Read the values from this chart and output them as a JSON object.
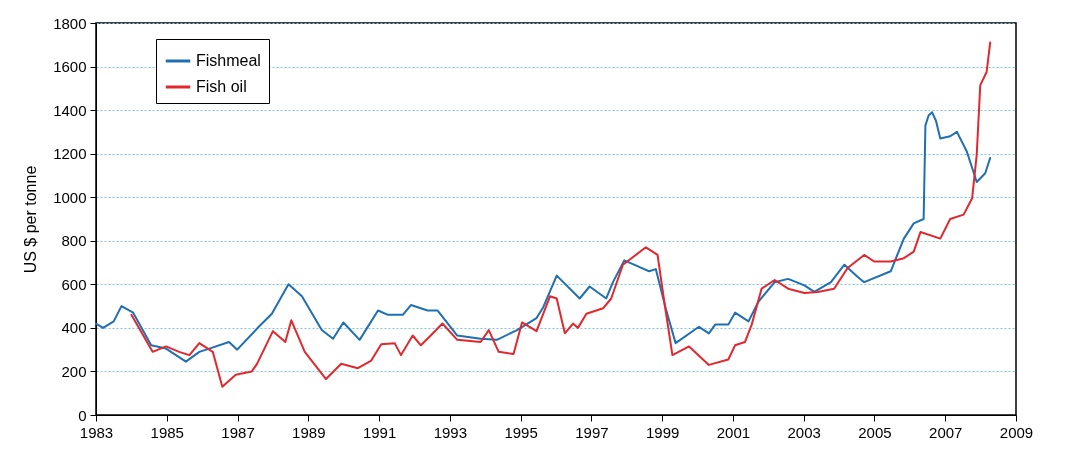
{
  "chart_data": {
    "type": "line",
    "ylabel": "US $ per tonne",
    "xlim": [
      1983,
      2009
    ],
    "xticks": [
      1983,
      1985,
      1987,
      1989,
      1991,
      1993,
      1995,
      1997,
      1999,
      2001,
      2003,
      2005,
      2007,
      2009
    ],
    "ylim": [
      0,
      1800
    ],
    "yticks": [
      0,
      200,
      400,
      600,
      800,
      1000,
      1200,
      1400,
      1600,
      1800
    ],
    "grid": "y",
    "legend": "top left",
    "marker": "none",
    "line_style": "solid",
    "series": [
      {
        "name": "Fishmeal",
        "color": "#1f6fb2",
        "x": [
          1983.0,
          1983.2,
          1983.5,
          1983.72,
          1984.05,
          1984.56,
          1984.98,
          1985.54,
          1985.92,
          1986.2,
          1986.76,
          1986.99,
          1987.6,
          1987.97,
          1988.44,
          1988.82,
          1989.38,
          1989.7,
          1989.99,
          1990.45,
          1990.97,
          1991.25,
          1991.67,
          1991.9,
          1992.37,
          1992.65,
          1993.21,
          1993.87,
          1994.33,
          1994.9,
          1995.45,
          1995.64,
          1996.02,
          1996.67,
          1996.95,
          1997.42,
          1997.61,
          1997.93,
          1998.35,
          1998.63,
          1998.82,
          1999.1,
          1999.38,
          2000.04,
          2000.32,
          2000.5,
          2000.87,
          2001.06,
          2001.44,
          2001.72,
          2002.18,
          2002.56,
          2003.02,
          2003.3,
          2003.77,
          2004.15,
          2004.52,
          2004.71,
          2005.46,
          2005.83,
          2006.11,
          2006.39,
          2006.44,
          2006.53,
          2006.63,
          2006.74,
          2006.86,
          2007.14,
          2007.33,
          2007.61,
          2007.89,
          2008.13,
          2008.27
        ],
        "values": [
          420,
          400,
          430,
          500,
          470,
          320,
          305,
          245,
          290,
          305,
          335,
          300,
          405,
          465,
          600,
          545,
          390,
          350,
          425,
          345,
          480,
          460,
          460,
          505,
          480,
          480,
          365,
          350,
          345,
          390,
          445,
          495,
          640,
          535,
          590,
          535,
          610,
          710,
          680,
          660,
          670,
          490,
          330,
          405,
          375,
          415,
          415,
          470,
          430,
          520,
          610,
          625,
          595,
          565,
          610,
          690,
          635,
          610,
          660,
          810,
          880,
          900,
          1330,
          1375,
          1390,
          1350,
          1270,
          1280,
          1300,
          1210,
          1070,
          1110,
          1180
        ]
      },
      {
        "name": "Fish oil",
        "color": "#e0282e",
        "x": [
          1984.0,
          1984.6,
          1984.98,
          1985.35,
          1985.64,
          1985.92,
          1986.3,
          1986.57,
          1986.95,
          1987.4,
          1987.55,
          1988.0,
          1988.35,
          1988.52,
          1988.9,
          1989.5,
          1989.93,
          1990.4,
          1990.78,
          1991.06,
          1991.44,
          1991.62,
          1991.95,
          1992.18,
          1992.46,
          1992.79,
          1993.21,
          1993.87,
          1994.1,
          1994.38,
          1994.8,
          1995.04,
          1995.45,
          1995.83,
          1996.02,
          1996.25,
          1996.48,
          1996.62,
          1996.86,
          1997.33,
          1997.56,
          1997.89,
          1998.54,
          1998.87,
          1999.06,
          1999.29,
          1999.76,
          2000.32,
          2000.87,
          2001.06,
          2001.34,
          2001.53,
          2001.81,
          2002.18,
          2002.56,
          2003.02,
          2003.4,
          2003.86,
          2004.24,
          2004.71,
          2004.99,
          2005.46,
          2005.83,
          2006.11,
          2006.3,
          2006.86,
          2007.14,
          2007.52,
          2007.76,
          2007.89,
          2007.99,
          2008.17,
          2008.27
        ],
        "values": [
          460,
          290,
          315,
          290,
          275,
          330,
          290,
          130,
          185,
          200,
          235,
          385,
          335,
          435,
          290,
          165,
          235,
          215,
          250,
          325,
          330,
          275,
          365,
          320,
          365,
          420,
          345,
          335,
          390,
          290,
          280,
          425,
          385,
          545,
          535,
          375,
          420,
          400,
          465,
          490,
          535,
          690,
          770,
          735,
          520,
          275,
          315,
          230,
          255,
          320,
          335,
          415,
          580,
          620,
          580,
          560,
          565,
          580,
          675,
          735,
          705,
          705,
          720,
          750,
          840,
          810,
          900,
          920,
          995,
          1195,
          1515,
          1575,
          1710
        ]
      }
    ]
  }
}
